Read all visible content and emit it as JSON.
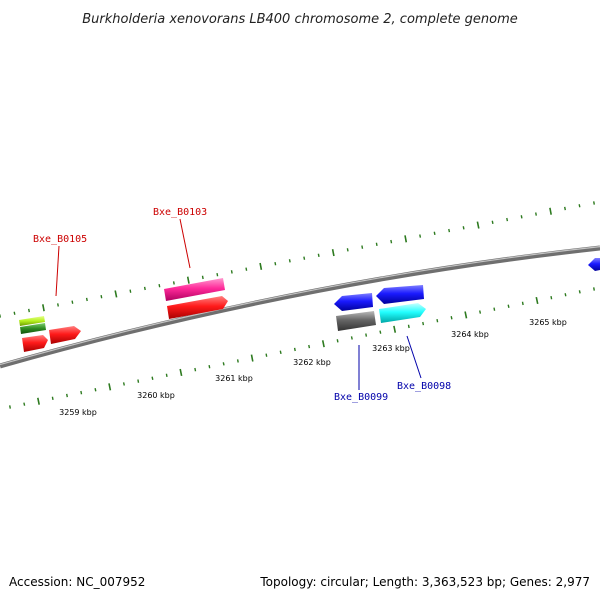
{
  "title": "Burkholderia xenovorans LB400 chromosome 2, complete genome",
  "footer": {
    "accession": "Accession: NC_007952",
    "summary": "Topology: circular; Length: 3,363,523 bp; Genes: 2,977"
  },
  "scale_labels": [
    "3259 kbp",
    "3260 kbp",
    "3261 kbp",
    "3262 kbp",
    "3263 kbp",
    "3264 kbp",
    "3265 kbp"
  ],
  "gene_labels": [
    {
      "text": "Bxe_B0105",
      "color": "#cc0000"
    },
    {
      "text": "Bxe_B0103",
      "color": "#cc0000"
    },
    {
      "text": "Bxe_B0099",
      "color": "#0000aa"
    },
    {
      "text": "Bxe_B0098",
      "color": "#0000aa"
    }
  ],
  "colors": {
    "backbone": "#7a7a7a",
    "tick": "#2d7a1f",
    "red": "#ff1a1a",
    "magenta": "#ff2a9a",
    "blue": "#1a1aff",
    "cyan": "#22ffff",
    "gray": "#666666",
    "lime": "#b4f01e",
    "dark_green": "#2e8b22"
  }
}
